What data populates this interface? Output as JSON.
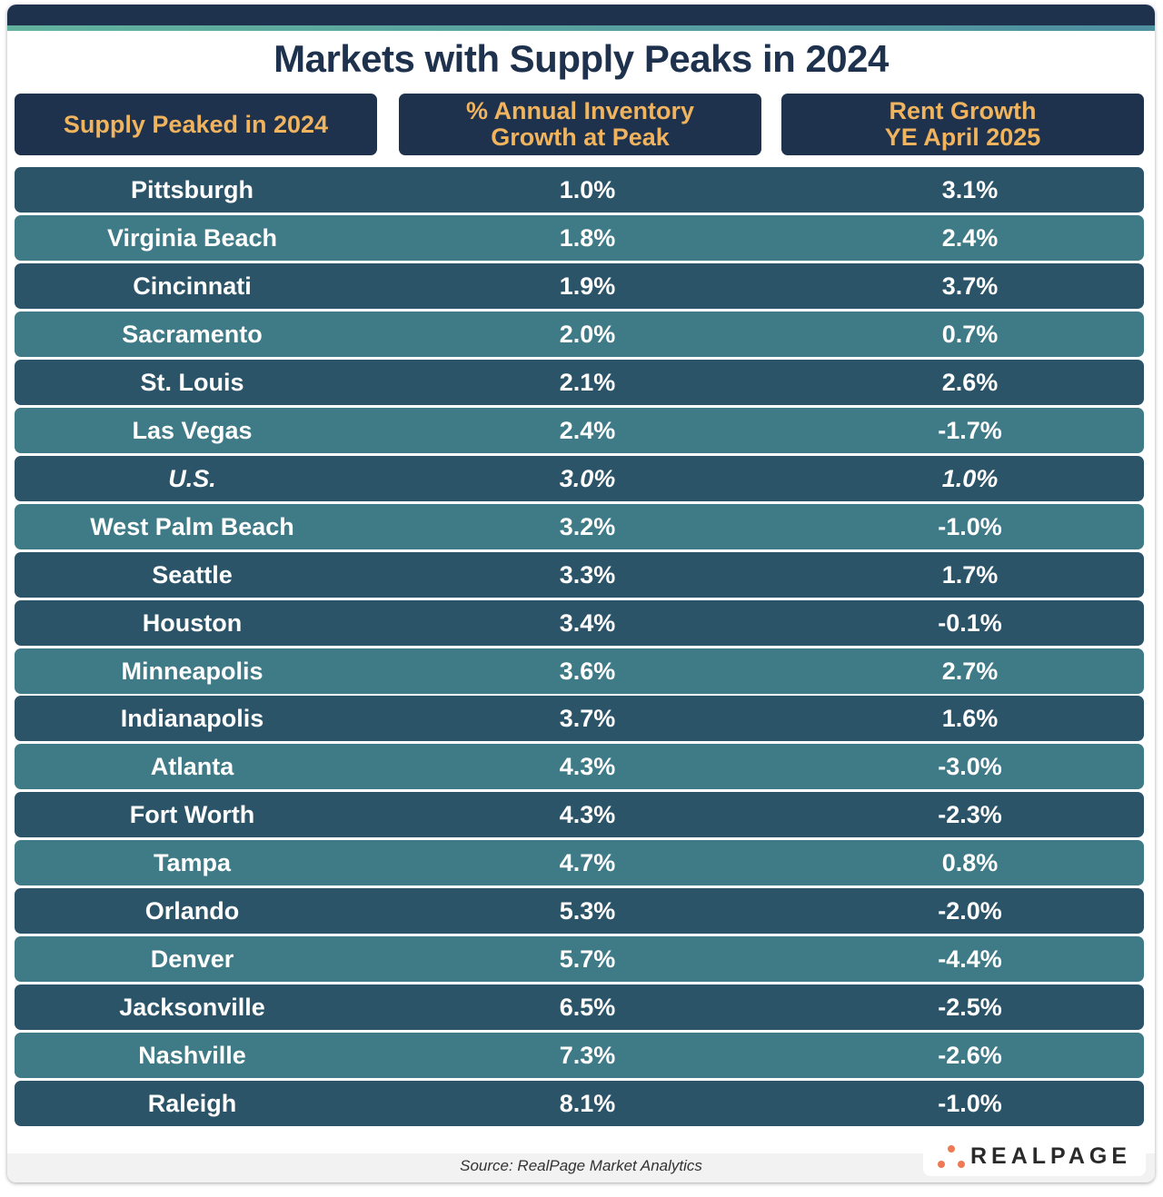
{
  "chart_data": {
    "type": "table",
    "title": "Markets with Supply Peaks in 2024",
    "columns": [
      "Supply Peaked in 2024",
      "% Annual Inventory\nGrowth at Peak",
      "Rent Growth\nYE April 2025"
    ],
    "rows": [
      {
        "market": "Pittsburgh",
        "inventory_growth": "1.0%",
        "rent_growth": "3.1%",
        "shade": "dark"
      },
      {
        "market": "Virginia Beach",
        "inventory_growth": "1.8%",
        "rent_growth": "2.4%",
        "shade": "light"
      },
      {
        "market": "Cincinnati",
        "inventory_growth": "1.9%",
        "rent_growth": "3.7%",
        "shade": "dark"
      },
      {
        "market": "Sacramento",
        "inventory_growth": "2.0%",
        "rent_growth": "0.7%",
        "shade": "light"
      },
      {
        "market": "St. Louis",
        "inventory_growth": "2.1%",
        "rent_growth": "2.6%",
        "shade": "dark"
      },
      {
        "market": "Las Vegas",
        "inventory_growth": "2.4%",
        "rent_growth": "-1.7%",
        "shade": "light"
      },
      {
        "market": "U.S.",
        "inventory_growth": "3.0%",
        "rent_growth": "1.0%",
        "shade": "dark",
        "italic": true
      },
      {
        "market": "West Palm Beach",
        "inventory_growth": "3.2%",
        "rent_growth": "-1.0%",
        "shade": "light"
      },
      {
        "market": "Seattle",
        "inventory_growth": "3.3%",
        "rent_growth": "1.7%",
        "shade": "dark"
      },
      {
        "market": "Houston",
        "inventory_growth": "3.4%",
        "rent_growth": "-0.1%",
        "shade": "dark"
      },
      {
        "market": "Minneapolis",
        "inventory_growth": "3.6%",
        "rent_growth": "2.7%",
        "shade": "light"
      },
      {
        "market": "Indianapolis",
        "inventory_growth": "3.7%",
        "rent_growth": "1.6%",
        "shade": "dark"
      },
      {
        "market": "Atlanta",
        "inventory_growth": "4.3%",
        "rent_growth": "-3.0%",
        "shade": "light"
      },
      {
        "market": "Fort Worth",
        "inventory_growth": "4.3%",
        "rent_growth": "-2.3%",
        "shade": "dark"
      },
      {
        "market": "Tampa",
        "inventory_growth": "4.7%",
        "rent_growth": "0.8%",
        "shade": "light"
      },
      {
        "market": "Orlando",
        "inventory_growth": "5.3%",
        "rent_growth": "-2.0%",
        "shade": "dark"
      },
      {
        "market": "Denver",
        "inventory_growth": "5.7%",
        "rent_growth": "-4.4%",
        "shade": "light"
      },
      {
        "market": "Jacksonville",
        "inventory_growth": "6.5%",
        "rent_growth": "-2.5%",
        "shade": "dark"
      },
      {
        "market": "Nashville",
        "inventory_growth": "7.3%",
        "rent_growth": "-2.6%",
        "shade": "light"
      },
      {
        "market": "Raleigh",
        "inventory_growth": "8.1%",
        "rent_growth": "-1.0%",
        "shade": "dark"
      }
    ]
  },
  "source": "Source: RealPage Market Analytics",
  "logo": "REALPAGE",
  "colors": {
    "navy": "#1e314d",
    "header_text": "#f0b35e",
    "row_dark": "#2c5468",
    "row_light": "#3f7a87",
    "logo_dots": "#ee7a55"
  }
}
